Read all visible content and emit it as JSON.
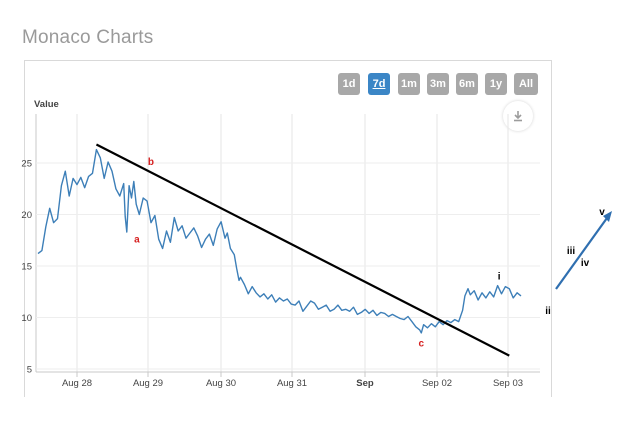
{
  "page": {
    "title": "Monaco Charts"
  },
  "toolbar": {
    "range_buttons": [
      {
        "label": "1d",
        "active": false
      },
      {
        "label": "7d",
        "active": true
      },
      {
        "label": "1m",
        "active": false
      },
      {
        "label": "3m",
        "active": false
      },
      {
        "label": "6m",
        "active": false
      },
      {
        "label": "1y",
        "active": false
      },
      {
        "label": "All",
        "active": false
      }
    ],
    "export_icon": "download-icon"
  },
  "colors": {
    "series": "#3d7fb8",
    "trendline": "#000000",
    "annotation_red": "#d62020",
    "annotation_black": "#000000",
    "arrow": "#2f6fb0",
    "active_button": "#3b86c6",
    "inactive_button": "#a8a8a8"
  },
  "chart_data": {
    "type": "line",
    "ylabel": "Value",
    "ylim": [
      5,
      28
    ],
    "y_ticks": [
      "5",
      "10",
      "15",
      "20",
      "25"
    ],
    "x_ticks": [
      "Aug 28",
      "Aug 29",
      "Aug 30",
      "Aug 31",
      "Sep",
      "Sep 02",
      "Sep 03"
    ],
    "grid": "vertical",
    "series": [
      {
        "values": [
          [
            0.0,
            16.2
          ],
          [
            0.05,
            16.5
          ],
          [
            0.1,
            18.8
          ],
          [
            0.15,
            20.6
          ],
          [
            0.2,
            19.2
          ],
          [
            0.25,
            19.6
          ],
          [
            0.3,
            22.8
          ],
          [
            0.35,
            24.2
          ],
          [
            0.4,
            21.8
          ],
          [
            0.45,
            23.5
          ],
          [
            0.5,
            22.9
          ],
          [
            0.55,
            23.6
          ],
          [
            0.6,
            22.6
          ],
          [
            0.65,
            23.7
          ],
          [
            0.7,
            24.0
          ],
          [
            0.75,
            26.3
          ],
          [
            0.8,
            25.5
          ],
          [
            0.85,
            23.5
          ],
          [
            0.9,
            25.1
          ],
          [
            0.95,
            24.2
          ],
          [
            1.0,
            22.5
          ],
          [
            1.05,
            21.8
          ],
          [
            1.1,
            23.0
          ],
          [
            1.12,
            19.8
          ],
          [
            1.14,
            18.3
          ],
          [
            1.17,
            22.8
          ],
          [
            1.2,
            21.6
          ],
          [
            1.23,
            23.2
          ],
          [
            1.26,
            21.0
          ],
          [
            1.3,
            20.0
          ],
          [
            1.35,
            21.6
          ],
          [
            1.4,
            21.3
          ],
          [
            1.45,
            19.2
          ],
          [
            1.5,
            19.9
          ],
          [
            1.55,
            17.6
          ],
          [
            1.6,
            16.7
          ],
          [
            1.65,
            18.4
          ],
          [
            1.7,
            17.3
          ],
          [
            1.75,
            19.7
          ],
          [
            1.8,
            18.4
          ],
          [
            1.85,
            18.9
          ],
          [
            1.9,
            17.7
          ],
          [
            1.95,
            18.2
          ],
          [
            2.0,
            18.7
          ],
          [
            2.05,
            17.9
          ],
          [
            2.1,
            16.8
          ],
          [
            2.15,
            17.6
          ],
          [
            2.2,
            18.1
          ],
          [
            2.25,
            17.0
          ],
          [
            2.3,
            18.6
          ],
          [
            2.35,
            19.3
          ],
          [
            2.4,
            17.7
          ],
          [
            2.43,
            18.2
          ],
          [
            2.47,
            16.7
          ],
          [
            2.52,
            16.1
          ],
          [
            2.55,
            14.8
          ],
          [
            2.58,
            13.6
          ],
          [
            2.6,
            13.9
          ],
          [
            2.65,
            13.2
          ],
          [
            2.7,
            12.3
          ],
          [
            2.75,
            13.0
          ],
          [
            2.8,
            12.4
          ],
          [
            2.85,
            12.0
          ],
          [
            2.9,
            12.3
          ],
          [
            2.95,
            11.8
          ],
          [
            3.0,
            12.2
          ],
          [
            3.05,
            11.5
          ],
          [
            3.1,
            11.9
          ],
          [
            3.15,
            11.6
          ],
          [
            3.2,
            11.8
          ],
          [
            3.25,
            11.3
          ],
          [
            3.3,
            11.2
          ],
          [
            3.35,
            11.6
          ],
          [
            3.4,
            10.6
          ],
          [
            3.45,
            11.1
          ],
          [
            3.5,
            11.6
          ],
          [
            3.55,
            11.4
          ],
          [
            3.6,
            10.8
          ],
          [
            3.65,
            11.0
          ],
          [
            3.7,
            11.2
          ],
          [
            3.75,
            10.6
          ],
          [
            3.8,
            10.8
          ],
          [
            3.85,
            11.2
          ],
          [
            3.9,
            10.7
          ],
          [
            3.95,
            10.8
          ],
          [
            4.0,
            10.6
          ],
          [
            4.05,
            11.0
          ],
          [
            4.1,
            10.3
          ],
          [
            4.15,
            10.5
          ],
          [
            4.2,
            10.8
          ],
          [
            4.25,
            10.4
          ],
          [
            4.3,
            10.7
          ],
          [
            4.35,
            10.2
          ],
          [
            4.4,
            10.5
          ],
          [
            4.45,
            10.4
          ],
          [
            4.5,
            10.1
          ],
          [
            4.55,
            10.3
          ],
          [
            4.6,
            10.1
          ],
          [
            4.65,
            9.9
          ],
          [
            4.7,
            9.8
          ],
          [
            4.75,
            10.1
          ],
          [
            4.8,
            9.6
          ],
          [
            4.85,
            9.1
          ],
          [
            4.9,
            8.8
          ],
          [
            4.92,
            8.5
          ],
          [
            4.95,
            9.3
          ],
          [
            5.0,
            9.0
          ],
          [
            5.05,
            9.4
          ],
          [
            5.1,
            9.1
          ],
          [
            5.15,
            9.6
          ],
          [
            5.2,
            9.3
          ],
          [
            5.25,
            9.7
          ],
          [
            5.3,
            9.5
          ],
          [
            5.35,
            9.8
          ],
          [
            5.4,
            9.6
          ],
          [
            5.45,
            10.7
          ],
          [
            5.48,
            12.1
          ],
          [
            5.52,
            12.8
          ],
          [
            5.55,
            12.2
          ],
          [
            5.6,
            12.6
          ],
          [
            5.65,
            11.7
          ],
          [
            5.7,
            12.4
          ],
          [
            5.75,
            11.9
          ],
          [
            5.8,
            12.5
          ],
          [
            5.85,
            12.0
          ],
          [
            5.9,
            13.1
          ],
          [
            5.95,
            12.3
          ],
          [
            6.0,
            13.0
          ],
          [
            6.05,
            12.8
          ],
          [
            6.1,
            11.9
          ],
          [
            6.15,
            12.4
          ],
          [
            6.2,
            12.1
          ]
        ]
      }
    ],
    "trendline": {
      "start": [
        0.75,
        26.8
      ],
      "end": [
        6.05,
        6.3
      ]
    },
    "annotations": [
      {
        "text": "b",
        "x": 1.45,
        "y": 24.8,
        "color": "red"
      },
      {
        "text": "a",
        "x": 1.27,
        "y": 17.3,
        "color": "red"
      },
      {
        "text": "c",
        "x": 4.92,
        "y": 7.2,
        "color": "red"
      },
      {
        "text": "i",
        "x": 5.92,
        "y": 13.7,
        "color": "black"
      }
    ],
    "side_annotations": [
      {
        "text": "iii"
      },
      {
        "text": "iv"
      },
      {
        "text": "v"
      },
      {
        "text": "ii"
      }
    ]
  }
}
